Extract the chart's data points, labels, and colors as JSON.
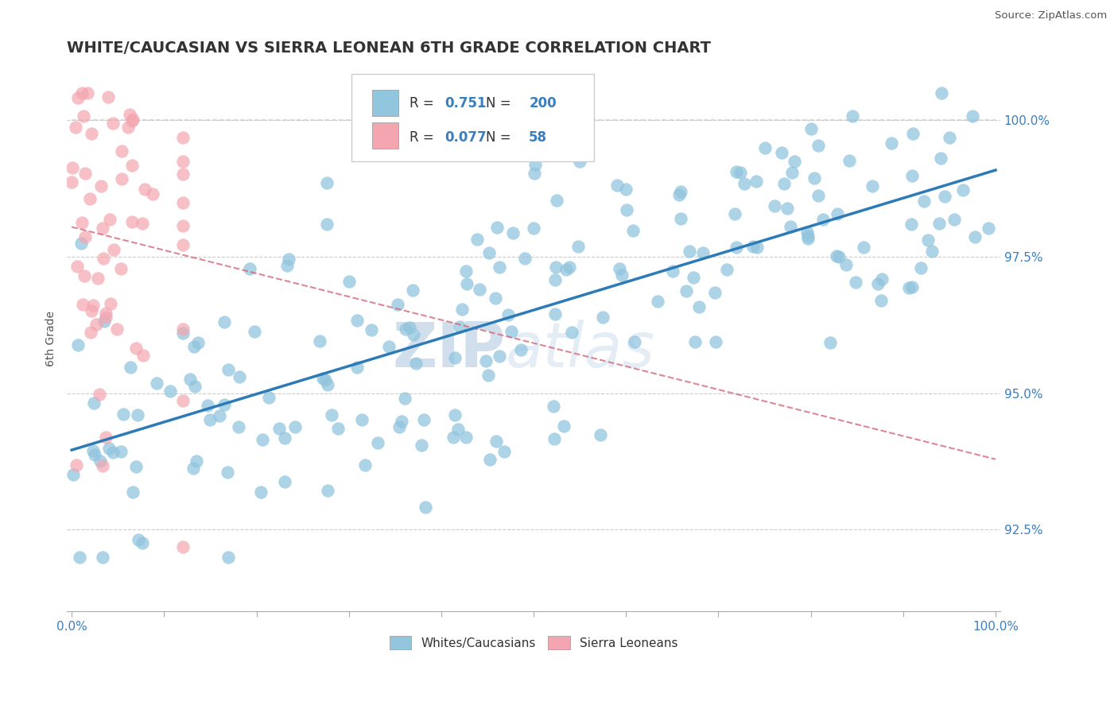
{
  "title": "WHITE/CAUCASIAN VS SIERRA LEONEAN 6TH GRADE CORRELATION CHART",
  "source": "Source: ZipAtlas.com",
  "ylabel": "6th Grade",
  "y_tick_vals": [
    0.925,
    0.95,
    0.975,
    1.0
  ],
  "y_tick_labels": [
    "92.5%",
    "95.0%",
    "97.5%",
    "100.0%"
  ],
  "legend_blue_r": "0.751",
  "legend_blue_n": "200",
  "legend_pink_r": "0.077",
  "legend_pink_n": "58",
  "blue_scatter_color": "#92c5de",
  "pink_scatter_color": "#f4a6b0",
  "blue_line_color": "#2c7bb6",
  "pink_line_color": "#d4697a",
  "diag_color": "#c8c8c8",
  "watermark_color": "#d0dff0",
  "background_color": "#ffffff",
  "title_fontsize": 14,
  "axis_label_color": "#3a7ebf",
  "tick_label_color": "#3a7ebf",
  "ylabel_color": "#555555",
  "source_color": "#555555"
}
